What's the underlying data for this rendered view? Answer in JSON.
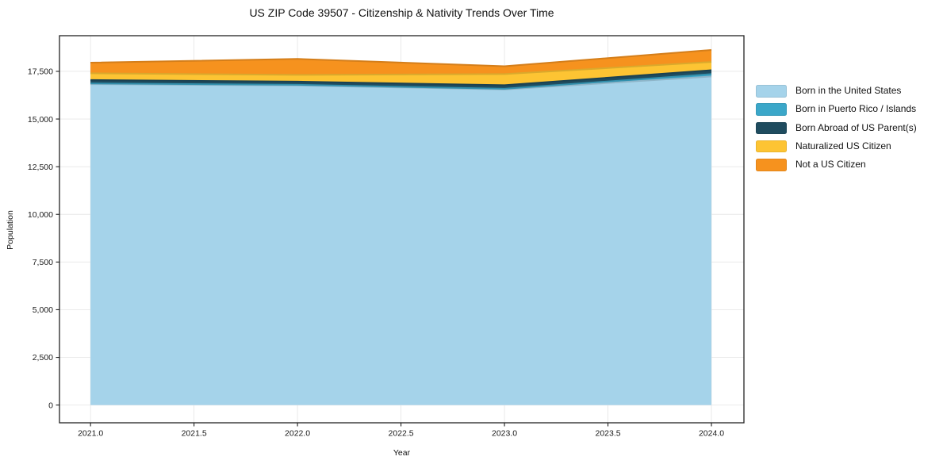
{
  "title": "US ZIP Code 39507 - Citizenship & Nativity Trends Over Time",
  "chart_data": {
    "type": "area",
    "stacked": true,
    "title": "US ZIP Code 39507 - Citizenship & Nativity Trends Over Time",
    "xlabel": "Year",
    "ylabel": "Population",
    "x": [
      2021,
      2022,
      2023,
      2024
    ],
    "series": [
      {
        "name": "Born in the United States",
        "color": "#a5d3ea",
        "values": [
          16830,
          16760,
          16550,
          17230
        ]
      },
      {
        "name": "Born in Puerto Rico / Islands",
        "color": "#3ba7c9",
        "values": [
          40,
          35,
          35,
          125
        ]
      },
      {
        "name": "Born Abroad of US Parent(s)",
        "color": "#1f4c5f",
        "values": [
          175,
          165,
          190,
          205
        ]
      },
      {
        "name": "Naturalized US Citizen",
        "color": "#fdc433",
        "values": [
          355,
          355,
          580,
          435
        ]
      },
      {
        "name": "Not a US Citizen",
        "color": "#f6921e",
        "values": [
          555,
          835,
          415,
          625
        ]
      }
    ],
    "totals": [
      17955,
      18150,
      17770,
      18620
    ],
    "xlim": [
      2020.85,
      2024.157
    ],
    "ylim": [
      -930,
      19370
    ],
    "xticks": [
      2021.0,
      2021.5,
      2022.0,
      2022.5,
      2023.0,
      2023.5,
      2024.0
    ],
    "yticks": [
      0,
      2500,
      5000,
      7500,
      10000,
      12500,
      15000,
      17500
    ],
    "grid": true,
    "legend_position": "right of plot, vertical list"
  }
}
